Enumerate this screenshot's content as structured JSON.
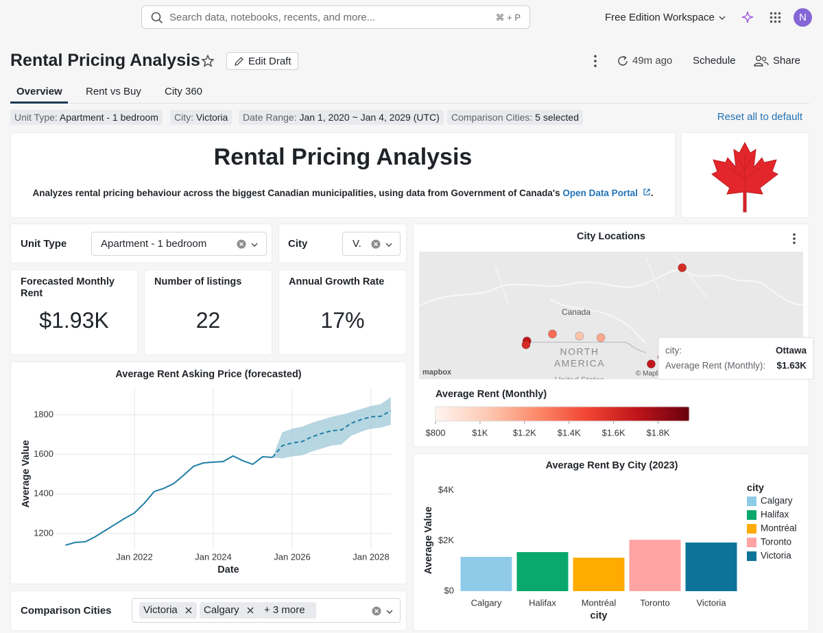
{
  "topbar": {
    "search_placeholder": "Search data, notebooks, recents, and more...",
    "shortcut": "⌘ + P",
    "workspace": "Free Edition Workspace",
    "avatar": "N"
  },
  "header": {
    "title": "Rental Pricing Analysis",
    "edit_button": "Edit Draft",
    "last_updated": "49m ago",
    "schedule": "Schedule",
    "share": "Share"
  },
  "tabs": [
    "Overview",
    "Rent vs Buy",
    "City 360"
  ],
  "filters": [
    {
      "label": "Unit Type:",
      "value": "Apartment - 1 bedroom"
    },
    {
      "label": "City:",
      "value": "Victoria"
    },
    {
      "label": "Date Range:",
      "value": "Jan 1, 2020 ~ Jan 4, 2029 (UTC)"
    },
    {
      "label": "Comparison Cities:",
      "value": "5 selected"
    }
  ],
  "reset": "Reset all to default",
  "banner": {
    "title": "Rental Pricing Analysis",
    "text": "Analyzes rental pricing behaviour across the biggest Canadian municipalities, using data from Government of Canada's",
    "link": "Open Data Portal",
    "end": "."
  },
  "controls": [
    {
      "label": "Unit Type",
      "value": "Apartment - 1 bedroom"
    },
    {
      "label": "City",
      "value": "V."
    }
  ],
  "kpis": [
    {
      "label": "Forecasted Monthly Rent",
      "value": "$1.93K"
    },
    {
      "label": "Number of listings",
      "value": "22"
    },
    {
      "label": "Annual Growth Rate",
      "value": "17%"
    }
  ],
  "comparison": {
    "label": "Comparison Cities",
    "chips": [
      "Victoria",
      "Calgary"
    ],
    "more": "+ 3 more"
  },
  "chart_data": [
    {
      "type": "line",
      "title": "Average Rent Asking Price (forecasted)",
      "x_label": "Date",
      "y_label": "Average Value",
      "x": [
        "2020-04",
        "2020-07",
        "2020-10",
        "2021-01",
        "2021-04",
        "2021-07",
        "2021-10",
        "2022-01",
        "2022-04",
        "2022-07",
        "2022-10",
        "2023-01",
        "2023-04",
        "2023-07",
        "2023-10",
        "2024-01",
        "2024-04",
        "2024-07",
        "2024-10",
        "2025-01",
        "2025-04",
        "2025-07",
        "2025-10",
        "2026-01",
        "2026-04",
        "2026-07",
        "2026-10",
        "2027-01",
        "2027-04",
        "2027-07",
        "2027-10",
        "2028-01",
        "2028-04",
        "2028-07"
      ],
      "series": [
        {
          "color": "#1f7ea5",
          "dashed": false,
          "values": [
            1141,
            1155,
            1158,
            1183,
            1214,
            1245,
            1276,
            1304,
            1353,
            1412,
            1429,
            1453,
            1495,
            1540,
            1557,
            1561,
            1564,
            1592,
            1568,
            1550,
            1588,
            1585,
            null,
            null,
            null,
            null,
            null,
            null,
            null,
            null,
            null,
            null,
            null,
            null
          ]
        },
        {
          "color": "#1f7ea5",
          "dashed": true,
          "values": [
            null,
            null,
            null,
            null,
            null,
            null,
            null,
            null,
            null,
            null,
            null,
            null,
            null,
            null,
            null,
            null,
            null,
            null,
            null,
            null,
            null,
            1585,
            1644,
            1658,
            1665,
            1689,
            1706,
            1720,
            1724,
            1758,
            1776,
            1790,
            1793,
            1821
          ]
        }
      ],
      "band": {
        "color": "#a9cfdc",
        "upper": [
          null,
          null,
          null,
          null,
          null,
          null,
          null,
          null,
          null,
          null,
          null,
          null,
          null,
          null,
          null,
          null,
          null,
          null,
          null,
          null,
          null,
          1585,
          1712,
          1730,
          1740,
          1760,
          1775,
          1790,
          1800,
          1815,
          1830,
          1845,
          1855,
          1890
        ],
        "lower": [
          null,
          null,
          null,
          null,
          null,
          null,
          null,
          null,
          null,
          null,
          null,
          null,
          null,
          null,
          null,
          null,
          null,
          null,
          null,
          null,
          null,
          1585,
          1580,
          1590,
          1595,
          1615,
          1630,
          1645,
          1650,
          1695,
          1715,
          1730,
          1735,
          1750
        ]
      },
      "xlim": [
        "2020-01",
        "2028-07"
      ],
      "xticks": [
        {
          "value": "2022-01",
          "label": "Jan 2022"
        },
        {
          "value": "2024-01",
          "label": "Jan 2024"
        },
        {
          "value": "2026-01",
          "label": "Jan 2026"
        },
        {
          "value": "2028-01",
          "label": "Jan 2028"
        }
      ],
      "ylim": [
        1120,
        1935
      ],
      "yticks": [
        1200,
        1400,
        1600,
        1800
      ],
      "grid": true
    },
    {
      "type": "map",
      "title": "City Locations",
      "x": [
        -123.1,
        -123.4,
        -114.1,
        -104.6,
        -97.1,
        -79.4,
        -75.7,
        -68.5
      ],
      "y": [
        49.3,
        48.4,
        51.0,
        50.5,
        50.1,
        43.7,
        45.4,
        67.1
      ],
      "values": [
        1700,
        1600,
        1350,
        1050,
        1150,
        1700,
        1630,
        1600
      ],
      "xlim": [
        -161,
        -26
      ],
      "ylim": [
        40,
        71
      ],
      "colorbar_title": "Average Rent (Monthly)",
      "colorscale": [
        "#fff5f0",
        "#fdcab5",
        "#fc8a6a",
        "#f14432",
        "#bc141a",
        "#67000d"
      ],
      "clim": [
        800,
        1940
      ],
      "cticks": [
        {
          "value": 800,
          "label": "$800"
        },
        {
          "value": 1000,
          "label": "$1K"
        },
        {
          "value": 1200,
          "label": "$1.2K"
        },
        {
          "value": 1400,
          "label": "$1.4K"
        },
        {
          "value": 1600,
          "label": "$1.6K"
        },
        {
          "value": 1800,
          "label": "$1.8K"
        }
      ],
      "country_label": "Canada",
      "continent_label": [
        "NORTH",
        "AMERICA"
      ],
      "us_label": "United States",
      "logo": "mapbox",
      "attribution": "© Mapbox",
      "tooltip": [
        [
          "city:",
          "Ottawa"
        ],
        [
          "Average Rent (Monthly):",
          "$1.63K"
        ]
      ]
    },
    {
      "type": "bar",
      "title": "Average Rent By City (2023)",
      "x_label": "city",
      "y_label": "Average Value",
      "legend_title": "city",
      "categories": [
        "Calgary",
        "Halifax",
        "Montréal",
        "Toronto",
        "Victoria"
      ],
      "values": [
        1360,
        1550,
        1330,
        2040,
        1930
      ],
      "colors": [
        "#8fcbe8",
        "#0aa86b",
        "#ffab00",
        "#ffa3a3",
        "#0e7398"
      ],
      "ylim": [
        0,
        4000
      ],
      "yticks": [
        {
          "value": 0,
          "label": "$0"
        },
        {
          "value": 2000,
          "label": "$2K"
        },
        {
          "value": 4000,
          "label": "$4K"
        }
      ],
      "grid": false,
      "legend": "right"
    }
  ]
}
